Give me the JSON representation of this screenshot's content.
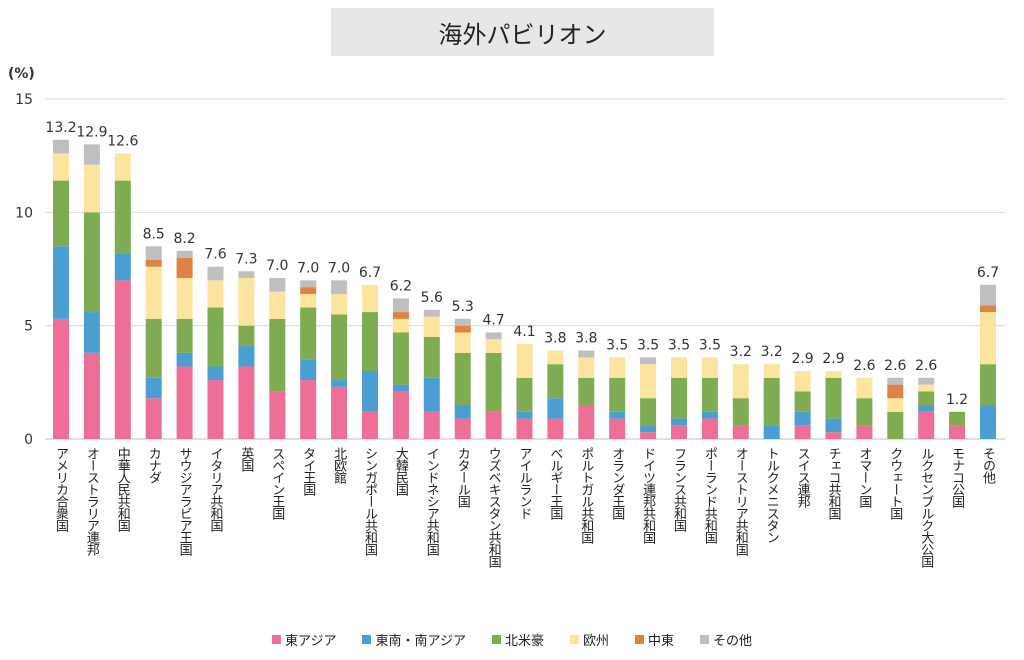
{
  "chart_data": {
    "type": "bar",
    "stacked": true,
    "title": "海外パビリオン",
    "ylabel": "(%)",
    "ylim": [
      0,
      15
    ],
    "yticks": [
      0,
      5,
      10,
      15
    ],
    "grid": true,
    "legend_position": "bottom",
    "categories": [
      "アメリカ合衆国",
      "オーストラリア連邦",
      "中華人民共和国",
      "カナダ",
      "サウジアラビア王国",
      "イタリア共和国",
      "英国",
      "スペイン王国",
      "タイ王国",
      "北欧館",
      "シンガポール共和国",
      "大韓民国",
      "インドネシア共和国",
      "カタール国",
      "ウズベキスタン共和国",
      "アイルランド",
      "ベルギー王国",
      "ポルトガル共和国",
      "オランダ王国",
      "ドイツ連邦共和国",
      "フランス共和国",
      "ポーランド共和国",
      "オーストリア共和国",
      "トルクメニスタン",
      "スイス連邦",
      "チェコ共和国",
      "オマーン国",
      "クウェート国",
      "ルクセンブルク大公国",
      "モナコ公国",
      "その他"
    ],
    "totals": [
      "13.2",
      "12.9",
      "12.6",
      "8.5",
      "8.2",
      "7.6",
      "7.3",
      "7.0",
      "7.0",
      "7.0",
      "6.7",
      "6.2",
      "5.6",
      "5.3",
      "4.7",
      "4.1",
      "3.8",
      "3.8",
      "3.5",
      "3.5",
      "3.5",
      "3.5",
      "3.2",
      "3.2",
      "2.9",
      "2.9",
      "2.6",
      "2.6",
      "2.6",
      "1.2",
      "6.7"
    ],
    "series": [
      {
        "name": "東アジア",
        "color": "#ee6f96",
        "values": [
          5.3,
          3.8,
          7.0,
          1.8,
          3.2,
          2.6,
          3.2,
          2.1,
          2.6,
          2.3,
          1.2,
          2.1,
          1.2,
          0.9,
          1.2,
          0.9,
          0.9,
          1.5,
          0.9,
          0.3,
          0.6,
          0.9,
          0.6,
          0,
          0.6,
          0.3,
          0.6,
          0,
          1.2,
          0.6,
          0
        ]
      },
      {
        "name": "東南・南アジア",
        "color": "#4a9ed2",
        "values": [
          3.2,
          1.8,
          1.2,
          0.9,
          0.6,
          0.6,
          0.9,
          0,
          0.9,
          0.3,
          1.8,
          0.3,
          1.5,
          0.6,
          0,
          0.3,
          0.9,
          0,
          0.3,
          0.3,
          0.3,
          0.3,
          0,
          0.6,
          0.6,
          0.6,
          0,
          0,
          0.3,
          0,
          1.5
        ]
      },
      {
        "name": "北米豪",
        "color": "#7fab52",
        "values": [
          2.9,
          4.4,
          3.2,
          2.6,
          1.5,
          2.6,
          0.9,
          3.2,
          2.3,
          2.9,
          2.6,
          2.3,
          1.8,
          2.3,
          2.6,
          1.5,
          1.5,
          1.2,
          1.5,
          1.2,
          1.8,
          1.5,
          1.2,
          2.1,
          0.9,
          1.8,
          1.2,
          1.2,
          0.6,
          0.6,
          1.8
        ]
      },
      {
        "name": "欧州",
        "color": "#fbe49d",
        "values": [
          1.2,
          2.1,
          1.2,
          2.3,
          1.8,
          1.2,
          2.1,
          1.2,
          0.6,
          0.9,
          1.2,
          0.6,
          0.9,
          0.9,
          0.6,
          1.5,
          0.6,
          0.9,
          0.9,
          1.5,
          0.9,
          0.9,
          1.5,
          0.6,
          0.9,
          0.3,
          0.9,
          0.6,
          0.3,
          0,
          2.3
        ]
      },
      {
        "name": "中東",
        "color": "#e08243",
        "values": [
          0,
          0,
          0,
          0.3,
          0.9,
          0,
          0,
          0,
          0.3,
          0,
          0,
          0.3,
          0,
          0.3,
          0,
          0,
          0,
          0,
          0,
          0,
          0,
          0,
          0,
          0,
          0,
          0,
          0,
          0.6,
          0,
          0,
          0.3
        ]
      },
      {
        "name": "その他",
        "color": "#bfbfbf",
        "values": [
          0.6,
          0.9,
          0,
          0.6,
          0.3,
          0.6,
          0.3,
          0.6,
          0.3,
          0.6,
          0,
          0.6,
          0.3,
          0.3,
          0.3,
          0,
          0,
          0.3,
          0,
          0.3,
          0,
          0,
          0,
          0,
          0,
          0,
          0,
          0.3,
          0.3,
          0,
          0.9
        ]
      }
    ]
  }
}
